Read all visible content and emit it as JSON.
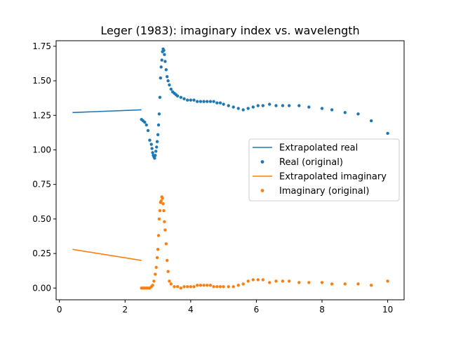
{
  "chart_data": {
    "type": "scatter",
    "title": "Leger (1983): imaginary index vs. wavelength",
    "xlabel": "",
    "ylabel": "",
    "xlim": [
      -0.1,
      10.5
    ],
    "ylim": [
      -0.085,
      1.79
    ],
    "x_ticks": [
      0,
      2,
      4,
      6,
      8,
      10
    ],
    "y_ticks": [
      0.0,
      0.25,
      0.5,
      0.75,
      1.0,
      1.25,
      1.5,
      1.75
    ],
    "x_tick_labels": [
      "0",
      "2",
      "4",
      "6",
      "8",
      "10"
    ],
    "y_tick_labels": [
      "0.00",
      "0.25",
      "0.50",
      "0.75",
      "1.00",
      "1.25",
      "1.50",
      "1.75"
    ],
    "grid": false,
    "legend_position": "right",
    "colors": {
      "real": "#1f77b4",
      "imag": "#ff7f0e"
    },
    "series": [
      {
        "name": "Extrapolated real",
        "kind": "line",
        "color": "#1f77b4",
        "x": [
          0.4,
          2.5
        ],
        "y": [
          1.27,
          1.29
        ]
      },
      {
        "name": "Real (original)",
        "kind": "scatter",
        "color": "#1f77b4",
        "x": [
          2.5,
          2.55,
          2.6,
          2.65,
          2.7,
          2.75,
          2.8,
          2.82,
          2.84,
          2.86,
          2.88,
          2.9,
          2.92,
          2.94,
          2.96,
          2.98,
          3.0,
          3.02,
          3.04,
          3.06,
          3.08,
          3.1,
          3.12,
          3.14,
          3.16,
          3.18,
          3.2,
          3.22,
          3.25,
          3.28,
          3.31,
          3.35,
          3.4,
          3.45,
          3.5,
          3.55,
          3.6,
          3.7,
          3.8,
          3.9,
          4.0,
          4.1,
          4.2,
          4.3,
          4.4,
          4.5,
          4.6,
          4.7,
          4.8,
          4.9,
          5.0,
          5.15,
          5.3,
          5.45,
          5.6,
          5.75,
          5.9,
          6.05,
          6.2,
          6.4,
          6.6,
          6.8,
          7.0,
          7.3,
          7.6,
          8.0,
          8.3,
          8.7,
          9.1,
          9.5,
          10.0
        ],
        "y": [
          1.22,
          1.21,
          1.2,
          1.18,
          1.14,
          1.07,
          1.04,
          1.01,
          0.98,
          0.96,
          0.95,
          0.94,
          0.96,
          0.99,
          1.02,
          1.06,
          1.11,
          1.18,
          1.26,
          1.38,
          1.52,
          1.6,
          1.65,
          1.71,
          1.73,
          1.72,
          1.69,
          1.64,
          1.58,
          1.53,
          1.5,
          1.47,
          1.44,
          1.42,
          1.41,
          1.4,
          1.39,
          1.38,
          1.37,
          1.36,
          1.36,
          1.36,
          1.35,
          1.35,
          1.35,
          1.35,
          1.35,
          1.35,
          1.34,
          1.34,
          1.33,
          1.32,
          1.31,
          1.3,
          1.29,
          1.3,
          1.31,
          1.32,
          1.32,
          1.33,
          1.32,
          1.32,
          1.32,
          1.32,
          1.31,
          1.3,
          1.29,
          1.27,
          1.26,
          1.21,
          1.12
        ]
      },
      {
        "name": "Extrapolated imaginary",
        "kind": "line",
        "color": "#ff7f0e",
        "x": [
          0.4,
          2.5
        ],
        "y": [
          0.28,
          0.2
        ]
      },
      {
        "name": "Imaginary (original)",
        "kind": "scatter",
        "color": "#ff7f0e",
        "x": [
          2.5,
          2.55,
          2.6,
          2.65,
          2.7,
          2.75,
          2.8,
          2.84,
          2.88,
          2.92,
          2.95,
          2.98,
          3.0,
          3.02,
          3.04,
          3.06,
          3.08,
          3.1,
          3.12,
          3.14,
          3.16,
          3.18,
          3.2,
          3.22,
          3.25,
          3.28,
          3.31,
          3.35,
          3.4,
          3.5,
          3.6,
          3.7,
          3.8,
          3.9,
          4.0,
          4.1,
          4.2,
          4.3,
          4.4,
          4.5,
          4.6,
          4.7,
          4.8,
          4.9,
          5.0,
          5.15,
          5.3,
          5.45,
          5.6,
          5.75,
          5.9,
          6.05,
          6.2,
          6.4,
          6.6,
          6.8,
          7.0,
          7.3,
          7.6,
          8.0,
          8.3,
          8.7,
          9.1,
          9.5,
          10.0
        ],
        "y": [
          0.0,
          0.0,
          0.0,
          0.0,
          0.0,
          0.0,
          0.01,
          0.02,
          0.05,
          0.1,
          0.15,
          0.22,
          0.28,
          0.38,
          0.5,
          0.56,
          0.62,
          0.63,
          0.66,
          0.65,
          0.61,
          0.56,
          0.48,
          0.42,
          0.32,
          0.2,
          0.12,
          0.05,
          0.03,
          0.01,
          0.01,
          0.0,
          0.01,
          0.01,
          0.01,
          0.01,
          0.02,
          0.02,
          0.02,
          0.02,
          0.02,
          0.01,
          0.01,
          0.01,
          0.01,
          0.01,
          0.01,
          0.02,
          0.03,
          0.05,
          0.06,
          0.06,
          0.06,
          0.04,
          0.05,
          0.05,
          0.05,
          0.04,
          0.04,
          0.04,
          0.03,
          0.03,
          0.03,
          0.02,
          0.05
        ]
      }
    ]
  }
}
